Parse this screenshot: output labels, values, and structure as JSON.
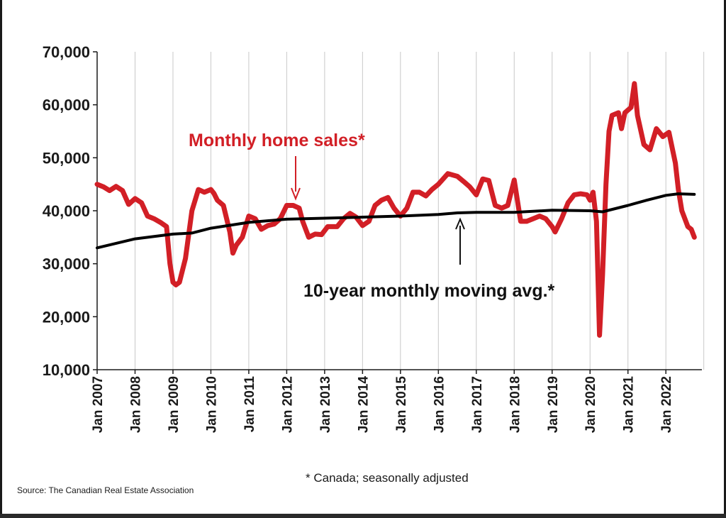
{
  "chart_data": {
    "type": "line",
    "title": "",
    "xlabel": "",
    "ylabel": "",
    "ylim": [
      10000,
      70000
    ],
    "y_ticks": [
      "10,000",
      "20,000",
      "30,000",
      "40,000",
      "50,000",
      "60,000",
      "70,000"
    ],
    "x_tick_labels": [
      "Jan 2007",
      "Jan 2008",
      "Jan 2009",
      "Jan 2010",
      "Jan 2011",
      "Jan 2012",
      "Jan 2013",
      "Jan 2014",
      "Jan 2015",
      "Jan 2016",
      "Jan 2017",
      "Jan 2018",
      "Jan 2019",
      "Jan 2020",
      "Jan 2021",
      "Jan 2022"
    ],
    "grid": "vertical",
    "series": [
      {
        "color": "#d21f26",
        "points": [
          [
            2007.0,
            45000
          ],
          [
            2007.17,
            44500
          ],
          [
            2007.33,
            43800
          ],
          [
            2007.5,
            44600
          ],
          [
            2007.67,
            43800
          ],
          [
            2007.83,
            41200
          ],
          [
            2008.0,
            42300
          ],
          [
            2008.17,
            41500
          ],
          [
            2008.33,
            39000
          ],
          [
            2008.5,
            38500
          ],
          [
            2008.67,
            37800
          ],
          [
            2008.83,
            37000
          ],
          [
            2008.92,
            30000
          ],
          [
            2009.0,
            26500
          ],
          [
            2009.08,
            26000
          ],
          [
            2009.17,
            26500
          ],
          [
            2009.33,
            31000
          ],
          [
            2009.5,
            40000
          ],
          [
            2009.67,
            44000
          ],
          [
            2009.83,
            43500
          ],
          [
            2010.0,
            44000
          ],
          [
            2010.08,
            43300
          ],
          [
            2010.17,
            42000
          ],
          [
            2010.33,
            41000
          ],
          [
            2010.5,
            36000
          ],
          [
            2010.58,
            32000
          ],
          [
            2010.67,
            33500
          ],
          [
            2010.83,
            35000
          ],
          [
            2011.0,
            39000
          ],
          [
            2011.17,
            38500
          ],
          [
            2011.33,
            36500
          ],
          [
            2011.5,
            37200
          ],
          [
            2011.67,
            37500
          ],
          [
            2011.83,
            38500
          ],
          [
            2012.0,
            41000
          ],
          [
            2012.17,
            41000
          ],
          [
            2012.33,
            40500
          ],
          [
            2012.42,
            38000
          ],
          [
            2012.58,
            35000
          ],
          [
            2012.75,
            35600
          ],
          [
            2012.92,
            35500
          ],
          [
            2013.08,
            37000
          ],
          [
            2013.33,
            37000
          ],
          [
            2013.5,
            38500
          ],
          [
            2013.67,
            39500
          ],
          [
            2013.83,
            38800
          ],
          [
            2014.0,
            37200
          ],
          [
            2014.17,
            38000
          ],
          [
            2014.33,
            41000
          ],
          [
            2014.5,
            42000
          ],
          [
            2014.67,
            42500
          ],
          [
            2014.83,
            40500
          ],
          [
            2015.0,
            39000
          ],
          [
            2015.17,
            40500
          ],
          [
            2015.33,
            43500
          ],
          [
            2015.5,
            43500
          ],
          [
            2015.67,
            42800
          ],
          [
            2015.83,
            44000
          ],
          [
            2016.0,
            45000
          ],
          [
            2016.25,
            47000
          ],
          [
            2016.5,
            46500
          ],
          [
            2016.67,
            45500
          ],
          [
            2016.83,
            44500
          ],
          [
            2017.0,
            43000
          ],
          [
            2017.17,
            46000
          ],
          [
            2017.33,
            45700
          ],
          [
            2017.5,
            41000
          ],
          [
            2017.67,
            40500
          ],
          [
            2017.83,
            41000
          ],
          [
            2018.0,
            45800
          ],
          [
            2018.17,
            38000
          ],
          [
            2018.33,
            38000
          ],
          [
            2018.5,
            38500
          ],
          [
            2018.67,
            39000
          ],
          [
            2018.83,
            38500
          ],
          [
            2019.0,
            37000
          ],
          [
            2019.08,
            36000
          ],
          [
            2019.25,
            38500
          ],
          [
            2019.42,
            41500
          ],
          [
            2019.58,
            43000
          ],
          [
            2019.75,
            43200
          ],
          [
            2019.92,
            43000
          ],
          [
            2020.0,
            42000
          ],
          [
            2020.08,
            43500
          ],
          [
            2020.17,
            38000
          ],
          [
            2020.25,
            16500
          ],
          [
            2020.33,
            28000
          ],
          [
            2020.42,
            45000
          ],
          [
            2020.5,
            55000
          ],
          [
            2020.58,
            58000
          ],
          [
            2020.75,
            58500
          ],
          [
            2020.83,
            55500
          ],
          [
            2020.92,
            58500
          ],
          [
            2021.08,
            59500
          ],
          [
            2021.17,
            64000
          ],
          [
            2021.25,
            58000
          ],
          [
            2021.42,
            52500
          ],
          [
            2021.58,
            51500
          ],
          [
            2021.75,
            55500
          ],
          [
            2021.92,
            54000
          ],
          [
            2022.08,
            54800
          ],
          [
            2022.25,
            49000
          ],
          [
            2022.33,
            44000
          ],
          [
            2022.42,
            40000
          ],
          [
            2022.58,
            37000
          ],
          [
            2022.67,
            36500
          ],
          [
            2022.75,
            35000
          ]
        ]
      },
      {
        "color": "#000000",
        "points": [
          [
            2007.0,
            33000
          ],
          [
            2008.0,
            34700
          ],
          [
            2009.0,
            35600
          ],
          [
            2009.5,
            35800
          ],
          [
            2010.0,
            36700
          ],
          [
            2011.0,
            37800
          ],
          [
            2012.0,
            38400
          ],
          [
            2013.0,
            38600
          ],
          [
            2014.0,
            38800
          ],
          [
            2015.0,
            39000
          ],
          [
            2016.0,
            39300
          ],
          [
            2016.5,
            39600
          ],
          [
            2017.0,
            39700
          ],
          [
            2018.0,
            39700
          ],
          [
            2019.0,
            40100
          ],
          [
            2020.0,
            40000
          ],
          [
            2020.33,
            39800
          ],
          [
            2021.0,
            41000
          ],
          [
            2021.5,
            42000
          ],
          [
            2022.0,
            42900
          ],
          [
            2022.33,
            43200
          ],
          [
            2022.75,
            43100
          ]
        ]
      }
    ]
  },
  "annotations": {
    "monthly_sales": "Monthly home sales*",
    "moving_avg": "10-year monthly moving avg.*"
  },
  "footnote": "* Canada; seasonally adjusted",
  "source": "Source: The Canadian Real Estate Association"
}
